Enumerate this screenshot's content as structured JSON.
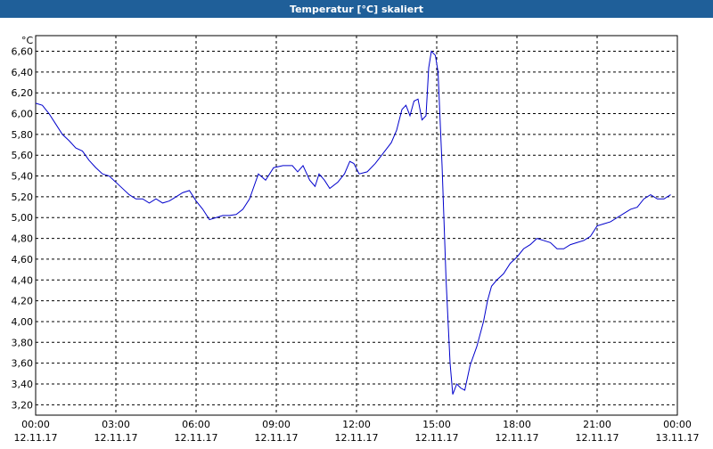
{
  "chart_data": {
    "type": "line",
    "title": "Temperatur [°C] skaliert",
    "y_unit": "°C",
    "x": [
      0,
      0.25,
      0.5,
      0.75,
      1,
      1.25,
      1.5,
      1.75,
      2,
      2.25,
      2.5,
      2.75,
      3,
      3.25,
      3.5,
      3.75,
      4,
      4.25,
      4.5,
      4.75,
      5,
      5.25,
      5.5,
      5.75,
      6,
      6.25,
      6.5,
      6.75,
      7,
      7.25,
      7.5,
      7.75,
      8,
      8.33,
      8.6,
      8.9,
      9.25,
      9.6,
      9.8,
      10,
      10.25,
      10.45,
      10.6,
      10.8,
      11,
      11.3,
      11.55,
      11.75,
      11.9,
      12.1,
      12.4,
      12.7,
      13,
      13.3,
      13.5,
      13.7,
      13.85,
      14,
      14.15,
      14.3,
      14.45,
      14.6,
      14.7,
      14.8,
      14.95,
      15.05,
      15.2,
      15.35,
      15.5,
      15.6,
      15.75,
      15.9,
      16.05,
      16.25,
      16.5,
      16.75,
      16.9,
      17.05,
      17.25,
      17.5,
      17.75,
      18,
      18.25,
      18.5,
      18.75,
      19,
      19.25,
      19.5,
      19.75,
      20,
      20.25,
      20.5,
      20.75,
      21,
      21.25,
      21.5,
      21.75,
      22,
      22.25,
      22.5,
      22.75,
      23,
      23.25,
      23.5,
      23.75
    ],
    "series": [
      {
        "name": "Temperatur",
        "color": "#0000cc",
        "values": [
          6.1,
          6.08,
          6.0,
          5.9,
          5.8,
          5.74,
          5.67,
          5.64,
          5.55,
          5.48,
          5.42,
          5.4,
          5.34,
          5.28,
          5.22,
          5.18,
          5.18,
          5.14,
          5.18,
          5.14,
          5.16,
          5.2,
          5.24,
          5.26,
          5.16,
          5.08,
          4.98,
          5.0,
          5.02,
          5.02,
          5.03,
          5.08,
          5.18,
          5.42,
          5.36,
          5.48,
          5.5,
          5.5,
          5.44,
          5.5,
          5.36,
          5.3,
          5.42,
          5.36,
          5.28,
          5.34,
          5.42,
          5.54,
          5.52,
          5.42,
          5.44,
          5.52,
          5.62,
          5.72,
          5.84,
          6.04,
          6.08,
          5.98,
          6.12,
          6.14,
          5.94,
          5.98,
          6.44,
          6.6,
          6.56,
          6.4,
          5.5,
          4.4,
          3.6,
          3.3,
          3.4,
          3.36,
          3.34,
          3.58,
          3.76,
          4.0,
          4.2,
          4.34,
          4.4,
          4.46,
          4.56,
          4.62,
          4.7,
          4.74,
          4.8,
          4.78,
          4.76,
          4.7,
          4.7,
          4.74,
          4.76,
          4.78,
          4.82,
          4.92,
          4.94,
          4.96,
          5.0,
          5.04,
          5.08,
          5.1,
          5.18,
          5.22,
          5.18,
          5.18,
          5.22
        ]
      }
    ],
    "xlim": [
      0,
      24
    ],
    "xticks": [
      {
        "value": 0,
        "label": "00:00"
      },
      {
        "value": 3,
        "label": "03:00"
      },
      {
        "value": 6,
        "label": "06:00"
      },
      {
        "value": 9,
        "label": "09:00"
      },
      {
        "value": 12,
        "label": "12:00"
      },
      {
        "value": 15,
        "label": "15:00"
      },
      {
        "value": 18,
        "label": "18:00"
      },
      {
        "value": 21,
        "label": "21:00"
      },
      {
        "value": 24,
        "label": "00:00"
      }
    ],
    "xtick_dates": [
      "12.11.17",
      "12.11.17",
      "12.11.17",
      "12.11.17",
      "12.11.17",
      "12.11.17",
      "12.11.17",
      "12.11.17",
      "13.11.17"
    ],
    "ylim": [
      3.1,
      6.75
    ],
    "yticks": [
      {
        "value": 3.2,
        "label": "3,20"
      },
      {
        "value": 3.4,
        "label": "3,40"
      },
      {
        "value": 3.6,
        "label": "3,60"
      },
      {
        "value": 3.8,
        "label": "3,80"
      },
      {
        "value": 4.0,
        "label": "4,00"
      },
      {
        "value": 4.2,
        "label": "4,20"
      },
      {
        "value": 4.4,
        "label": "4,40"
      },
      {
        "value": 4.6,
        "label": "4,60"
      },
      {
        "value": 4.8,
        "label": "4,80"
      },
      {
        "value": 5.0,
        "label": "5,00"
      },
      {
        "value": 5.2,
        "label": "5,20"
      },
      {
        "value": 5.4,
        "label": "5,40"
      },
      {
        "value": 5.6,
        "label": "5,60"
      },
      {
        "value": 5.8,
        "label": "5,80"
      },
      {
        "value": 6.0,
        "label": "6,00"
      },
      {
        "value": 6.2,
        "label": "6,20"
      },
      {
        "value": 6.4,
        "label": "6,40"
      },
      {
        "value": 6.6,
        "label": "6,60"
      }
    ],
    "grid": true
  }
}
